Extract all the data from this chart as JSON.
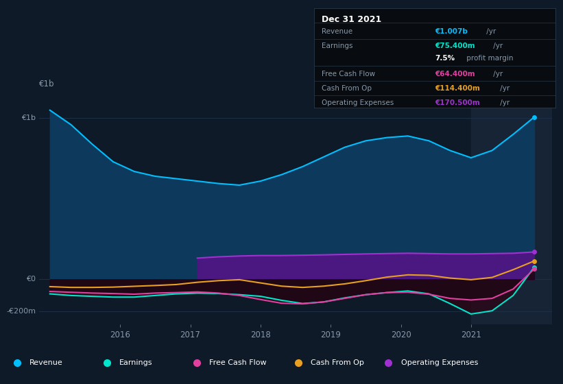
{
  "bg_color": "#0e1a28",
  "plot_bg_color": "#0e1a28",
  "forecast_bg": "#162435",
  "title_box_bg": "#080c10",
  "years": [
    2015.0,
    2015.3,
    2015.6,
    2015.9,
    2016.2,
    2016.5,
    2016.8,
    2017.1,
    2017.4,
    2017.7,
    2018.0,
    2018.3,
    2018.6,
    2018.9,
    2019.2,
    2019.5,
    2019.8,
    2020.1,
    2020.4,
    2020.7,
    2021.0,
    2021.3,
    2021.6,
    2021.9
  ],
  "revenue": [
    1050,
    960,
    840,
    730,
    670,
    640,
    625,
    610,
    595,
    585,
    610,
    650,
    700,
    760,
    820,
    860,
    880,
    890,
    860,
    800,
    755,
    800,
    900,
    1007
  ],
  "earnings": [
    -90,
    -100,
    -105,
    -110,
    -110,
    -100,
    -90,
    -85,
    -88,
    -95,
    -105,
    -130,
    -150,
    -140,
    -115,
    -95,
    -82,
    -72,
    -90,
    -150,
    -215,
    -195,
    -100,
    75
  ],
  "free_cash_flow": [
    -75,
    -80,
    -85,
    -88,
    -92,
    -85,
    -82,
    -78,
    -85,
    -100,
    -125,
    -148,
    -152,
    -140,
    -118,
    -95,
    -82,
    -80,
    -92,
    -118,
    -128,
    -118,
    -60,
    64
  ],
  "cash_from_op": [
    -45,
    -50,
    -50,
    -48,
    -43,
    -38,
    -32,
    -18,
    -8,
    -2,
    -22,
    -42,
    -50,
    -42,
    -28,
    -8,
    14,
    28,
    25,
    8,
    -2,
    12,
    60,
    114
  ],
  "operating_expenses_x": [
    2017.1,
    2017.4,
    2017.7,
    2018.0,
    2018.3,
    2018.6,
    2018.9,
    2019.2,
    2019.5,
    2019.8,
    2020.1,
    2020.4,
    2020.7,
    2021.0,
    2021.3,
    2021.6,
    2021.9
  ],
  "operating_expenses": [
    132,
    140,
    145,
    148,
    148,
    150,
    152,
    155,
    158,
    160,
    162,
    160,
    158,
    158,
    160,
    162,
    170
  ],
  "forecast_start": 2021.0,
  "xmin": 2014.85,
  "xmax": 2022.15,
  "ymin": -280,
  "ymax": 1150,
  "ytick_positions": [
    -200,
    0,
    1000
  ],
  "ytick_labels": [
    "-€200m",
    "€0",
    "€1b"
  ],
  "xticks": [
    2016,
    2017,
    2018,
    2019,
    2020,
    2021
  ],
  "revenue_color": "#00bfff",
  "revenue_fill": "#0d3a5c",
  "earnings_color": "#00e5cc",
  "fcf_color": "#e040a0",
  "cfo_color": "#e8a020",
  "opex_color": "#a030d0",
  "opex_fill": "#4a1880",
  "grid_color": "#1e3048",
  "text_color": "#8899aa",
  "title_text": "Dec 31 2021",
  "info_rows": [
    {
      "label": "Revenue",
      "value": "€1.007b",
      "suffix": " /yr",
      "value_color": "#00bfff",
      "bold": true
    },
    {
      "label": "Earnings",
      "value": "€75.400m",
      "suffix": " /yr",
      "value_color": "#00e5cc",
      "bold": true
    },
    {
      "label": "",
      "value": "7.5%",
      "suffix": " profit margin",
      "value_color": "#ffffff",
      "bold": true
    },
    {
      "label": "Free Cash Flow",
      "value": "€64.400m",
      "suffix": " /yr",
      "value_color": "#e040a0",
      "bold": true
    },
    {
      "label": "Cash From Op",
      "value": "€114.400m",
      "suffix": " /yr",
      "value_color": "#e8a020",
      "bold": true
    },
    {
      "label": "Operating Expenses",
      "value": "€170.500m",
      "suffix": " /yr",
      "value_color": "#a030d0",
      "bold": true
    }
  ],
  "legend_items": [
    "Revenue",
    "Earnings",
    "Free Cash Flow",
    "Cash From Op",
    "Operating Expenses"
  ],
  "legend_colors": [
    "#00bfff",
    "#00e5cc",
    "#e040a0",
    "#e8a020",
    "#a030d0"
  ]
}
